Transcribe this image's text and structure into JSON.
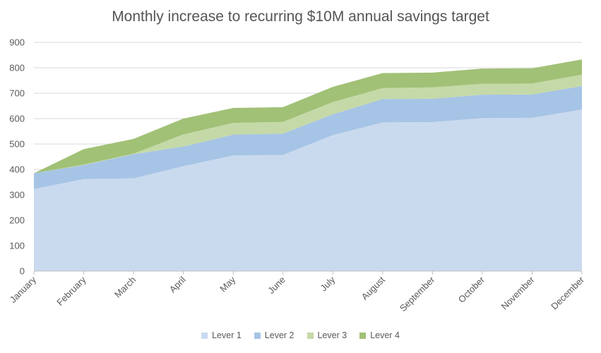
{
  "chart_data": {
    "type": "area",
    "stacked": true,
    "title": "Monthly increase to recurring $10M annual savings target",
    "xlabel": "",
    "ylabel": "",
    "categories": [
      "January",
      "February",
      "March",
      "April",
      "May",
      "June",
      "July",
      "August",
      "September",
      "October",
      "November",
      "December"
    ],
    "ylim": [
      0,
      900
    ],
    "yticks": [
      0,
      100,
      200,
      300,
      400,
      500,
      600,
      700,
      800,
      900
    ],
    "grid": true,
    "legend_position": "bottom",
    "series": [
      {
        "name": "Lever 1",
        "color": "#c9daef",
        "values": [
          323,
          362,
          365,
          413,
          455,
          457,
          535,
          585,
          586,
          602,
          603,
          636
        ]
      },
      {
        "name": "Lever 2",
        "color": "#a6c4e5",
        "values": [
          62,
          55,
          95,
          77,
          82,
          84,
          82,
          92,
          92,
          92,
          92,
          92
        ]
      },
      {
        "name": "Lever 3",
        "color": "#c5d9a8",
        "values": [
          0,
          2,
          2,
          48,
          46,
          46,
          48,
          43,
          45,
          43,
          43,
          45
        ]
      },
      {
        "name": "Lever 4",
        "color": "#a1c176",
        "values": [
          0,
          61,
          58,
          62,
          59,
          58,
          60,
          59,
          58,
          60,
          60,
          60
        ]
      }
    ]
  }
}
